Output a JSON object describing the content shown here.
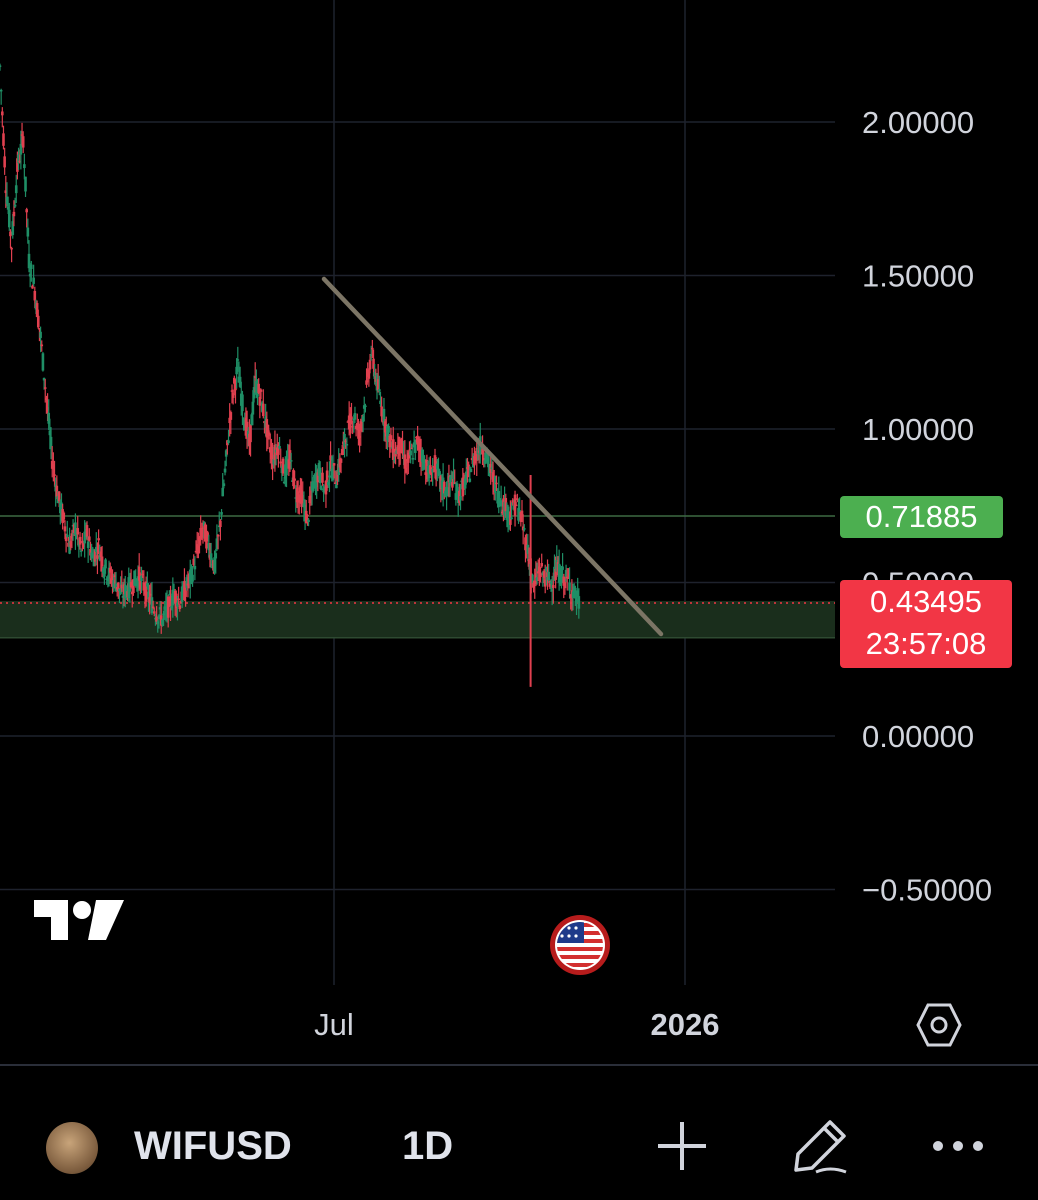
{
  "chart_data": {
    "type": "candlestick",
    "title": "",
    "symbol": "WIFUSD",
    "interval": "1D",
    "y_axis": {
      "ticks": [
        2.0,
        1.5,
        1.0,
        0.5,
        0.0,
        -0.5
      ],
      "tick_labels": [
        "2.00000",
        "1.50000",
        "1.00000",
        "0.50000",
        "0.00000",
        "−0.50000"
      ],
      "range": [
        -0.62,
        2.38
      ]
    },
    "x_axis": {
      "tick_labels": [
        "Jul",
        "2026"
      ]
    },
    "horizontal_line": {
      "value": 0.71885,
      "label": "0.71885",
      "color": "#4caf50"
    },
    "current_price": {
      "value": 0.43495,
      "label": "0.43495",
      "countdown": "23:57:08",
      "color": "#f23645"
    },
    "support_zone": {
      "low": 0.32,
      "high": 0.44,
      "color": "#1a2e1c"
    },
    "trendline": {
      "start": [
        0.9,
        1.49
      ],
      "end": [
        6.3,
        0.33
      ],
      "color": "#7c7565"
    },
    "price_path": [
      [
        0.0,
        2.18
      ],
      [
        0.05,
        1.8
      ],
      [
        0.1,
        1.6
      ],
      [
        0.15,
        1.85
      ],
      [
        0.2,
        1.95
      ],
      [
        0.25,
        1.55
      ],
      [
        0.3,
        1.45
      ],
      [
        0.35,
        1.3
      ],
      [
        0.4,
        1.1
      ],
      [
        0.45,
        0.9
      ],
      [
        0.5,
        0.78
      ],
      [
        0.55,
        0.7
      ],
      [
        0.6,
        0.62
      ],
      [
        0.65,
        0.68
      ],
      [
        0.7,
        0.6
      ],
      [
        0.75,
        0.66
      ],
      [
        0.8,
        0.58
      ],
      [
        0.85,
        0.62
      ],
      [
        0.9,
        0.55
      ],
      [
        0.95,
        0.52
      ],
      [
        1.0,
        0.5
      ],
      [
        1.05,
        0.46
      ],
      [
        1.1,
        0.48
      ],
      [
        1.15,
        0.5
      ],
      [
        1.2,
        0.52
      ],
      [
        1.25,
        0.48
      ],
      [
        1.3,
        0.44
      ],
      [
        1.35,
        0.4
      ],
      [
        1.4,
        0.38
      ],
      [
        1.45,
        0.42
      ],
      [
        1.5,
        0.46
      ],
      [
        1.55,
        0.44
      ],
      [
        1.6,
        0.48
      ],
      [
        1.65,
        0.52
      ],
      [
        1.7,
        0.6
      ],
      [
        1.75,
        0.68
      ],
      [
        1.8,
        0.62
      ],
      [
        1.85,
        0.55
      ],
      [
        1.9,
        0.7
      ],
      [
        1.95,
        0.9
      ],
      [
        2.0,
        1.1
      ],
      [
        2.05,
        1.2
      ],
      [
        2.1,
        1.05
      ],
      [
        2.15,
        0.95
      ],
      [
        2.2,
        1.15
      ],
      [
        2.25,
        1.1
      ],
      [
        2.3,
        1.0
      ],
      [
        2.35,
        0.9
      ],
      [
        2.4,
        0.95
      ],
      [
        2.45,
        0.85
      ],
      [
        2.5,
        0.9
      ],
      [
        2.55,
        0.8
      ],
      [
        2.6,
        0.78
      ],
      [
        2.65,
        0.7
      ],
      [
        2.7,
        0.82
      ],
      [
        2.75,
        0.86
      ],
      [
        2.8,
        0.8
      ],
      [
        2.85,
        0.88
      ],
      [
        2.9,
        0.84
      ],
      [
        2.95,
        0.92
      ],
      [
        3.0,
        1.0
      ],
      [
        3.05,
        1.05
      ],
      [
        3.1,
        0.98
      ],
      [
        3.15,
        1.1
      ],
      [
        3.2,
        1.25
      ],
      [
        3.25,
        1.15
      ],
      [
        3.3,
        1.05
      ],
      [
        3.35,
        0.98
      ],
      [
        3.4,
        0.92
      ],
      [
        3.45,
        0.95
      ],
      [
        3.5,
        0.88
      ],
      [
        3.55,
        0.92
      ],
      [
        3.6,
        0.96
      ],
      [
        3.65,
        0.9
      ],
      [
        3.7,
        0.85
      ],
      [
        3.75,
        0.88
      ],
      [
        3.8,
        0.82
      ],
      [
        3.85,
        0.8
      ],
      [
        3.9,
        0.84
      ],
      [
        3.95,
        0.78
      ],
      [
        4.0,
        0.82
      ],
      [
        4.05,
        0.86
      ],
      [
        4.1,
        0.92
      ],
      [
        4.15,
        0.95
      ],
      [
        4.2,
        0.9
      ],
      [
        4.25,
        0.84
      ],
      [
        4.3,
        0.78
      ],
      [
        4.35,
        0.75
      ],
      [
        4.4,
        0.72
      ],
      [
        4.45,
        0.76
      ],
      [
        4.5,
        0.7
      ],
      [
        4.55,
        0.6
      ],
      [
        4.6,
        0.48
      ],
      [
        4.65,
        0.54
      ],
      [
        4.7,
        0.52
      ],
      [
        4.75,
        0.5
      ],
      [
        4.8,
        0.54
      ],
      [
        4.85,
        0.52
      ],
      [
        4.9,
        0.5
      ],
      [
        4.95,
        0.46
      ],
      [
        5.0,
        0.43
      ]
    ],
    "wick_low_event": {
      "x": 4.6,
      "low": 0.16
    },
    "grid": true
  }
}
